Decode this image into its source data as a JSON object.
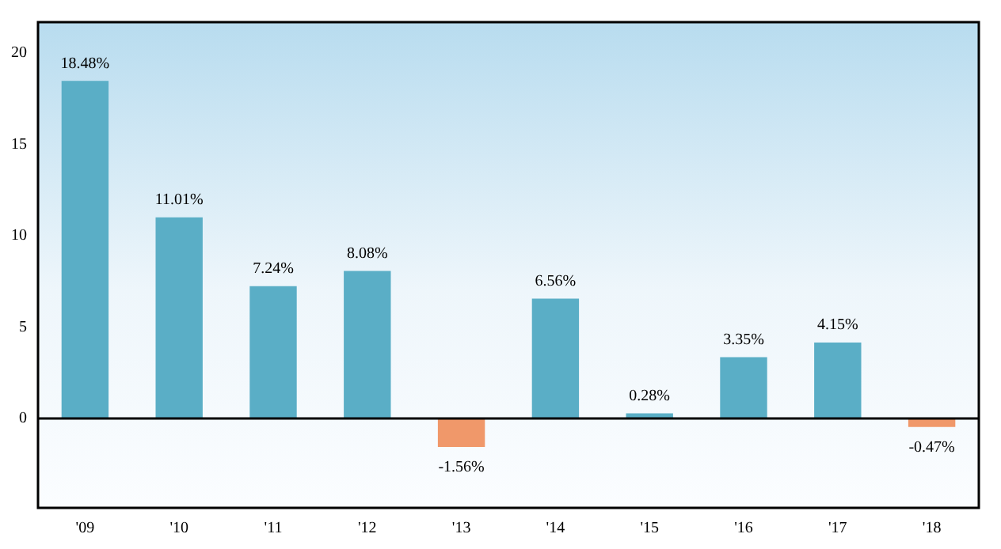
{
  "chart_data": {
    "type": "bar",
    "categories": [
      "'09",
      "'10",
      "'11",
      "'12",
      "'13",
      "'14",
      "'15",
      "'16",
      "'17",
      "'18"
    ],
    "values": [
      18.48,
      11.01,
      7.24,
      8.08,
      -1.56,
      6.56,
      0.28,
      3.35,
      4.15,
      -0.47
    ],
    "value_labels": [
      "18.48%",
      "11.01%",
      "7.24%",
      "8.08%",
      "-1.56%",
      "6.56%",
      "0.28%",
      "3.35%",
      "4.15%",
      "-0.47%"
    ],
    "colors": [
      "#5aaec6",
      "#5aaec6",
      "#5aaec6",
      "#5aaec6",
      "#f0986a",
      "#5aaec6",
      "#5aaec6",
      "#5aaec6",
      "#5aaec6",
      "#f0986a"
    ],
    "ref_lines": [
      {
        "axis": "y",
        "value": 0,
        "color": "#000000"
      }
    ],
    "ylim": [
      -4.9,
      21.7
    ],
    "yticks": [
      0,
      5,
      10,
      15,
      20
    ],
    "grid": false,
    "legend": false
  }
}
